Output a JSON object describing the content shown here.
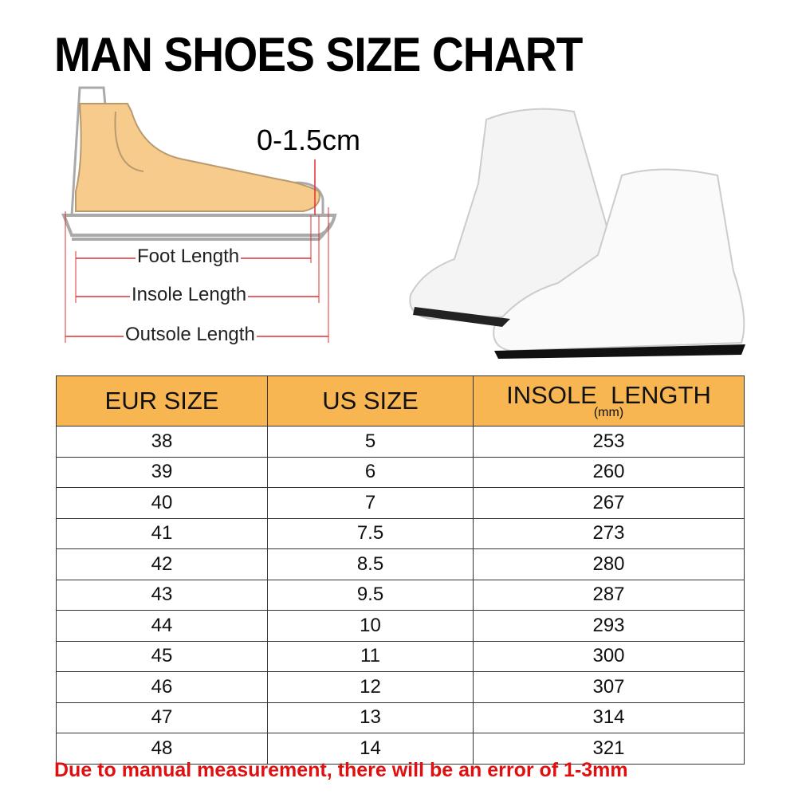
{
  "title": "MAN SHOES SIZE CHART",
  "diagram": {
    "toe_gap": "0-1.5cm",
    "foot_length": "Foot Length",
    "insole_length": "Insole Length",
    "outsole_length": "Outsole Length",
    "arrow_color": "#e03030"
  },
  "table": {
    "header_color": "#f7b652",
    "headers": {
      "eur": "EUR SIZE",
      "us": "US SIZE",
      "insole": "INSOLE  LENGTH",
      "insole_unit": "(mm)"
    },
    "rows": [
      {
        "eur": "38",
        "us": "5",
        "insole": "253"
      },
      {
        "eur": "39",
        "us": "6",
        "insole": "260"
      },
      {
        "eur": "40",
        "us": "7",
        "insole": "267"
      },
      {
        "eur": "41",
        "us": "7.5",
        "insole": "273"
      },
      {
        "eur": "42",
        "us": "8.5",
        "insole": "280"
      },
      {
        "eur": "43",
        "us": "9.5",
        "insole": "287"
      },
      {
        "eur": "44",
        "us": "10",
        "insole": "293"
      },
      {
        "eur": "45",
        "us": "11",
        "insole": "300"
      },
      {
        "eur": "46",
        "us": "12",
        "insole": "307"
      },
      {
        "eur": "47",
        "us": "13",
        "insole": "314"
      },
      {
        "eur": "48",
        "us": "14",
        "insole": "321"
      }
    ]
  },
  "note": "Due to manual measurement, there will be an error of 1-3mm"
}
